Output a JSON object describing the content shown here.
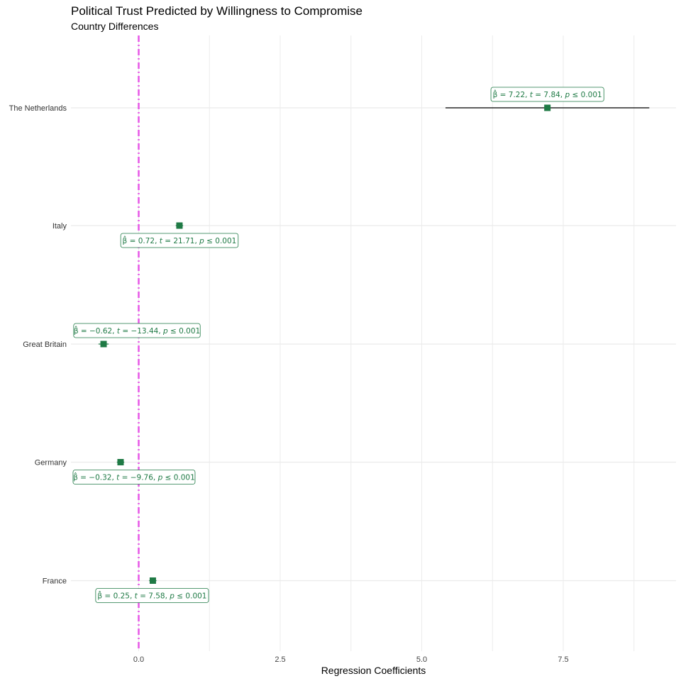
{
  "chart_data": {
    "type": "scatter",
    "title": "Political Trust Predicted by Willingness to Compromise",
    "subtitle": "Country Differences",
    "xlabel": "Regression Coefficients",
    "ylabel": "",
    "xlim": [
      -1.2,
      9.4
    ],
    "x_ticks": [
      0.0,
      2.5,
      5.0,
      7.5
    ],
    "x_tick_labels": [
      "0.0",
      "2.5",
      "5.0",
      "7.5"
    ],
    "grid": true,
    "reference_line": {
      "x": 0
    },
    "categories": [
      "The Netherlands",
      "Italy",
      "Great Britain",
      "Germany",
      "France"
    ],
    "estimates": [
      {
        "category": "The Netherlands",
        "beta": 7.22,
        "ci_low": 5.42,
        "ci_high": 9.02,
        "label": {
          "beta": "7.22",
          "t": "7.84",
          "p": "0.001"
        }
      },
      {
        "category": "Italy",
        "beta": 0.72,
        "ci_low": 0.655,
        "ci_high": 0.785,
        "label": {
          "beta": "0.72",
          "t": "21.71",
          "p": "0.001"
        }
      },
      {
        "category": "Great Britain",
        "beta": -0.62,
        "ci_low": -0.71,
        "ci_high": -0.53,
        "label": {
          "beta": "−0.62",
          "t": "−13.44",
          "p": "0.001"
        }
      },
      {
        "category": "Germany",
        "beta": -0.32,
        "ci_low": -0.385,
        "ci_high": -0.255,
        "label": {
          "beta": "−0.32",
          "t": "−9.76",
          "p": "0.001"
        }
      },
      {
        "category": "France",
        "beta": 0.25,
        "ci_low": 0.185,
        "ci_high": 0.315,
        "label": {
          "beta": "0.25",
          "t": "7.58",
          "p": "0.001"
        }
      }
    ]
  },
  "colors": {
    "point": "#1f7a45",
    "label_text": "#1f7a45",
    "ref_line": "#e75be7",
    "grid": "#ebebeb",
    "ci_main": "#000000"
  }
}
